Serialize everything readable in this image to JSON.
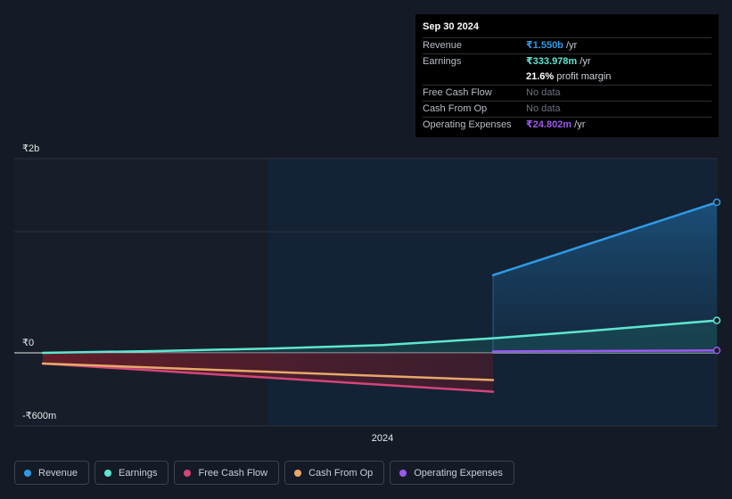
{
  "tooltip": {
    "date": "Sep 30 2024",
    "rows": [
      {
        "label": "Revenue",
        "value": "₹1.550b",
        "unit": "/yr",
        "color": "#2f9be8"
      },
      {
        "label": "Earnings",
        "value": "₹333.978m",
        "unit": "/yr",
        "color": "#5ee6d0"
      },
      {
        "label": "",
        "value": "21.6%",
        "unit": "profit margin",
        "color": "#ffffff"
      },
      {
        "label": "Free Cash Flow",
        "value": "No data",
        "unit": "",
        "color": ""
      },
      {
        "label": "Cash From Op",
        "value": "No data",
        "unit": "",
        "color": ""
      },
      {
        "label": "Operating Expenses",
        "value": "₹24.802m",
        "unit": "/yr",
        "color": "#9b59f0"
      }
    ]
  },
  "chart_data": {
    "type": "line",
    "y_tick_labels": [
      "₹2b",
      "₹0",
      "-₹600m"
    ],
    "x_tick_labels": [
      "2024"
    ],
    "ylim": [
      -600,
      1600
    ],
    "xlim": [
      2022.7,
      2024.75
    ],
    "forecast_start": 2023.35,
    "series": [
      {
        "name": "Revenue",
        "color": "#2f9be8",
        "x": [
          2024.0,
          2024.75
        ],
        "y": [
          800,
          1550
        ]
      },
      {
        "name": "Earnings",
        "color": "#5ee6d0",
        "x": [
          2022.78,
          2023.1,
          2023.4,
          2023.7,
          2024.0,
          2024.3,
          2024.75
        ],
        "y": [
          0,
          20,
          45,
          80,
          150,
          220,
          334
        ]
      },
      {
        "name": "Free Cash Flow",
        "color": "#d4457a",
        "x": [
          2022.78,
          2024.0
        ],
        "y": [
          -110,
          -400
        ]
      },
      {
        "name": "Cash From Op",
        "color": "#e8a86a",
        "x": [
          2022.78,
          2024.0
        ],
        "y": [
          -110,
          -280
        ]
      },
      {
        "name": "Operating Expenses",
        "color": "#9b59f0",
        "x": [
          2024.0,
          2024.75
        ],
        "y": [
          15,
          25
        ]
      }
    ]
  },
  "legend": [
    {
      "label": "Revenue",
      "color": "#2f9be8"
    },
    {
      "label": "Earnings",
      "color": "#5ee6d0"
    },
    {
      "label": "Free Cash Flow",
      "color": "#d4457a"
    },
    {
      "label": "Cash From Op",
      "color": "#e8a86a"
    },
    {
      "label": "Operating Expenses",
      "color": "#9b59f0"
    }
  ]
}
